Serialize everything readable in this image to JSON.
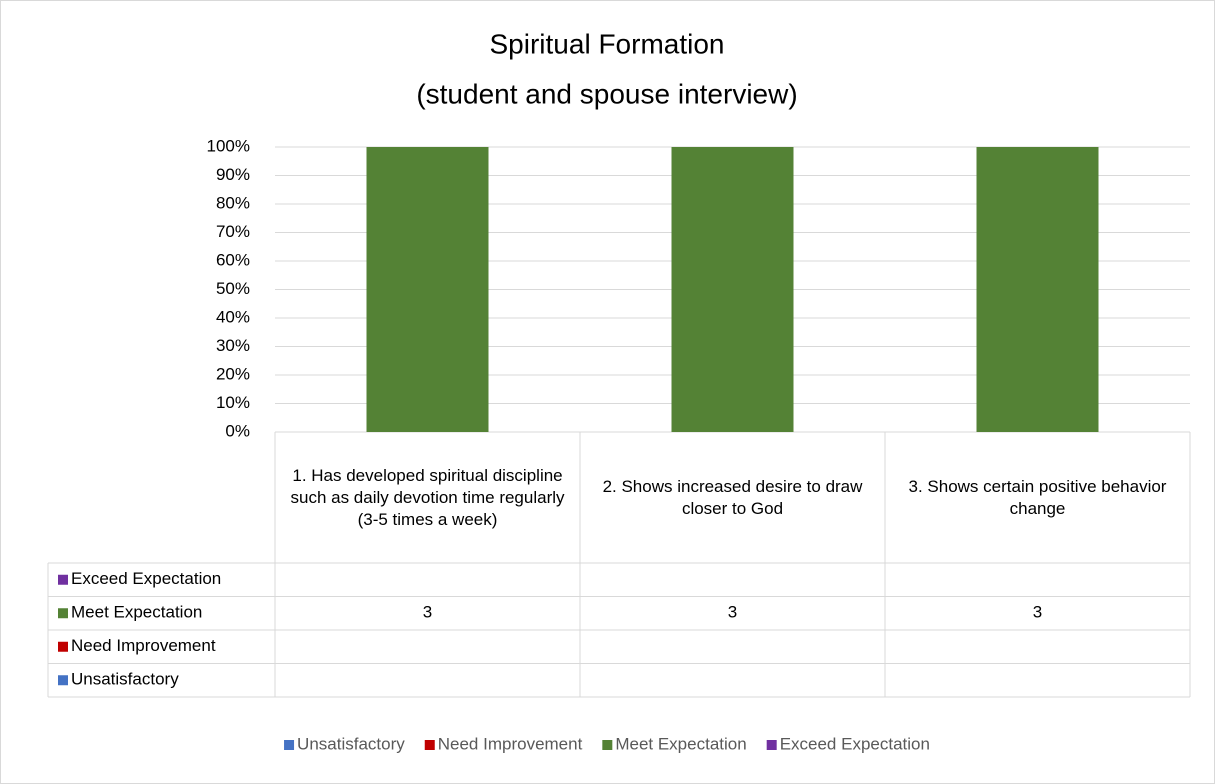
{
  "chart_data": {
    "type": "bar",
    "stacking": "percent",
    "title": "Spiritual Formation",
    "subtitle": "(student and spouse interview)",
    "categories": [
      "1. Has developed spiritual discipline such as daily devotion time regularly (3-5 times a week)",
      "2. Shows increased desire to draw closer to God",
      "3. Shows certain positive behavior change"
    ],
    "series": [
      {
        "name": "Unsatisfactory",
        "color": "#4472c4",
        "values": [
          null,
          null,
          null
        ]
      },
      {
        "name": "Need Improvement",
        "color": "#c00000",
        "values": [
          null,
          null,
          null
        ]
      },
      {
        "name": "Meet Expectation",
        "color": "#548235",
        "values": [
          3,
          3,
          3
        ]
      },
      {
        "name": "Exceed Expectation",
        "color": "#7030a0",
        "values": [
          null,
          null,
          null
        ]
      }
    ],
    "ylim": [
      0,
      100
    ],
    "yticks": [
      {
        "value": 0,
        "label": "0%"
      },
      {
        "value": 10,
        "label": "10%"
      },
      {
        "value": 20,
        "label": "20%"
      },
      {
        "value": 30,
        "label": "30%"
      },
      {
        "value": 40,
        "label": "40%"
      },
      {
        "value": 50,
        "label": "50%"
      },
      {
        "value": 60,
        "label": "60%"
      },
      {
        "value": 70,
        "label": "70%"
      },
      {
        "value": 80,
        "label": "80%"
      },
      {
        "value": 90,
        "label": "90%"
      },
      {
        "value": 100,
        "label": "100%"
      }
    ],
    "grid": true,
    "data_table": true,
    "legend": "bottom"
  }
}
